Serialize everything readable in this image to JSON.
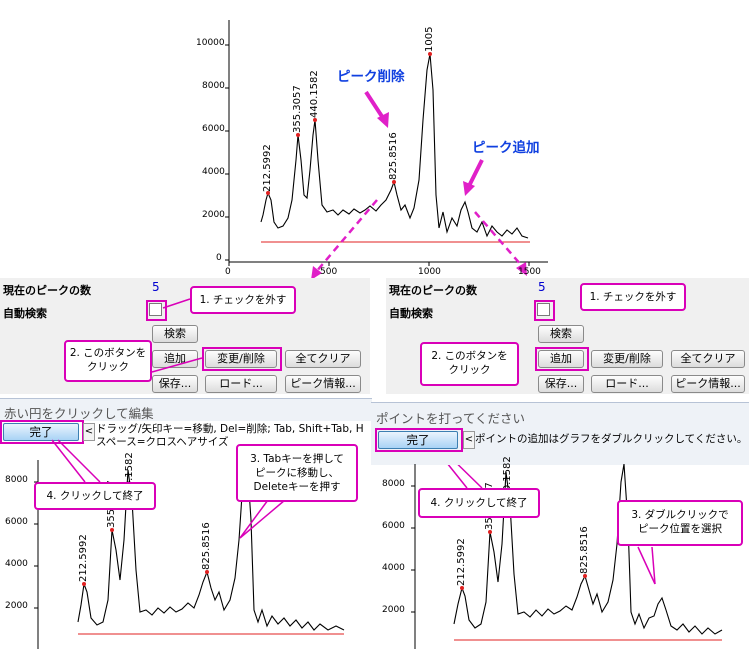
{
  "top_chart": {
    "y_ticks": [
      "10000",
      "8000",
      "6000",
      "4000",
      "2000",
      "0"
    ],
    "x_ticks": [
      "0",
      "500",
      "1000",
      "1500"
    ],
    "peak_labels": [
      "212.5992",
      "355.3057",
      "440.1582",
      "825.8516",
      "1005"
    ],
    "annotation_delete": "ピーク削除",
    "annotation_add": "ピーク追加"
  },
  "left_panel": {
    "peaks_count_label": "現在のピークの数",
    "peaks_count_value": "5",
    "auto_search_label": "自動検索",
    "buttons": {
      "search": "検索",
      "add": "追加",
      "modify_delete": "変更/削除",
      "clear_all": "全てクリア",
      "save": "保存...",
      "load": "ロード...",
      "peak_info": "ピーク情報..."
    },
    "edit_bar_title": "赤い円をクリックして編集",
    "done_button": "完了",
    "hint_line1": "ドラッグ/矢印キー=移動, Del=削除; Tab, Shift+Tab, H",
    "hint_line2": "スペース=クロスヘアサイズ",
    "callouts": {
      "uncheck": "1. チェックを外す",
      "click_button": "2. このボタンを\nクリック",
      "tab_move": "3. Tabキーを押して\nピークに移動し、\nDeleteキーを押す",
      "click_done": "4. クリックして終了"
    },
    "chart": {
      "y_ticks": [
        "8000",
        "6000",
        "4000",
        "2000"
      ],
      "peak_labels": [
        "212.5992",
        "355.3057",
        "440.1582",
        "825.8516"
      ]
    }
  },
  "right_panel": {
    "peaks_count_label": "現在のピークの数",
    "peaks_count_value": "5",
    "auto_search_label": "自動検索",
    "buttons": {
      "search": "検索",
      "add": "追加",
      "modify_delete": "変更/削除",
      "clear_all": "全てクリア",
      "save": "保存...",
      "load": "ロード...",
      "peak_info": "ピーク情報..."
    },
    "edit_bar_title": "ポイントを打ってください",
    "done_button": "完了",
    "hint_line1": "ポイントの追加はグラフをダブルクリックしてください。",
    "callouts": {
      "uncheck": "1. チェックを外す",
      "click_button": "2. このボタンを\nクリック",
      "double_click": "3. ダブルクリックで\nピーク位置を選択",
      "click_done": "4. クリックして終了"
    },
    "chart": {
      "y_ticks": [
        "8000",
        "6000",
        "4000",
        "2000"
      ],
      "peak_labels": [
        "212.5992",
        "355.3057",
        "440.1582",
        "825.8516"
      ]
    }
  },
  "colors": {
    "highlight": "#d900b8",
    "annotation_blue": "#1040e0",
    "baseline_red": "#e02020",
    "count_blue": "#0000d0",
    "panel_bg": "#f0f0f0"
  }
}
